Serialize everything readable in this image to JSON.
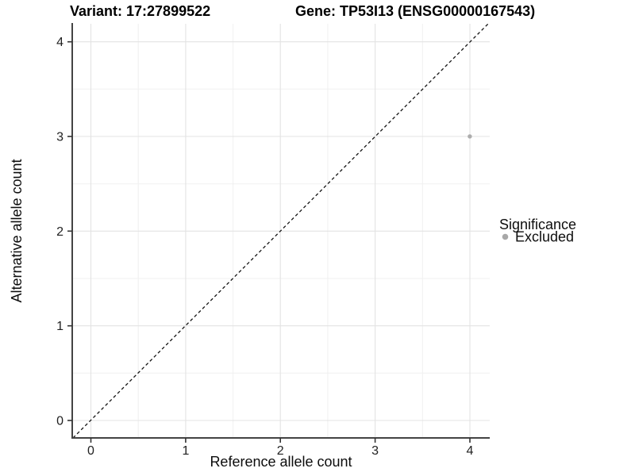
{
  "header": {
    "variant_title": "Variant: 17:27899522",
    "gene_title": "Gene: TP53I13 (ENSG00000167543)"
  },
  "chart_data": {
    "type": "scatter",
    "xlabel": "Reference allele count",
    "ylabel": "Alternative allele count",
    "xlim": [
      -0.2,
      4.2
    ],
    "ylim": [
      -0.2,
      4.2
    ],
    "xticks": [
      "0",
      "1",
      "2",
      "3",
      "4"
    ],
    "yticks": [
      "0",
      "1",
      "2",
      "3",
      "4"
    ],
    "grid": {
      "major_step": 1,
      "minor_step": 0.5,
      "major_color": "#e3e3e3",
      "minor_color": "#f0f0f0"
    },
    "reference_line": {
      "type": "identity",
      "equation": "y = x",
      "style": "dashed",
      "color": "#141414"
    },
    "series": [
      {
        "name": "Excluded",
        "color": "#adadad",
        "points": [
          {
            "x": 4,
            "y": 3
          }
        ]
      }
    ],
    "legend": {
      "title": "Significance",
      "position": "right",
      "entries": [
        {
          "label": "Excluded",
          "color": "#a8a8a8",
          "marker": "circle"
        }
      ]
    }
  }
}
